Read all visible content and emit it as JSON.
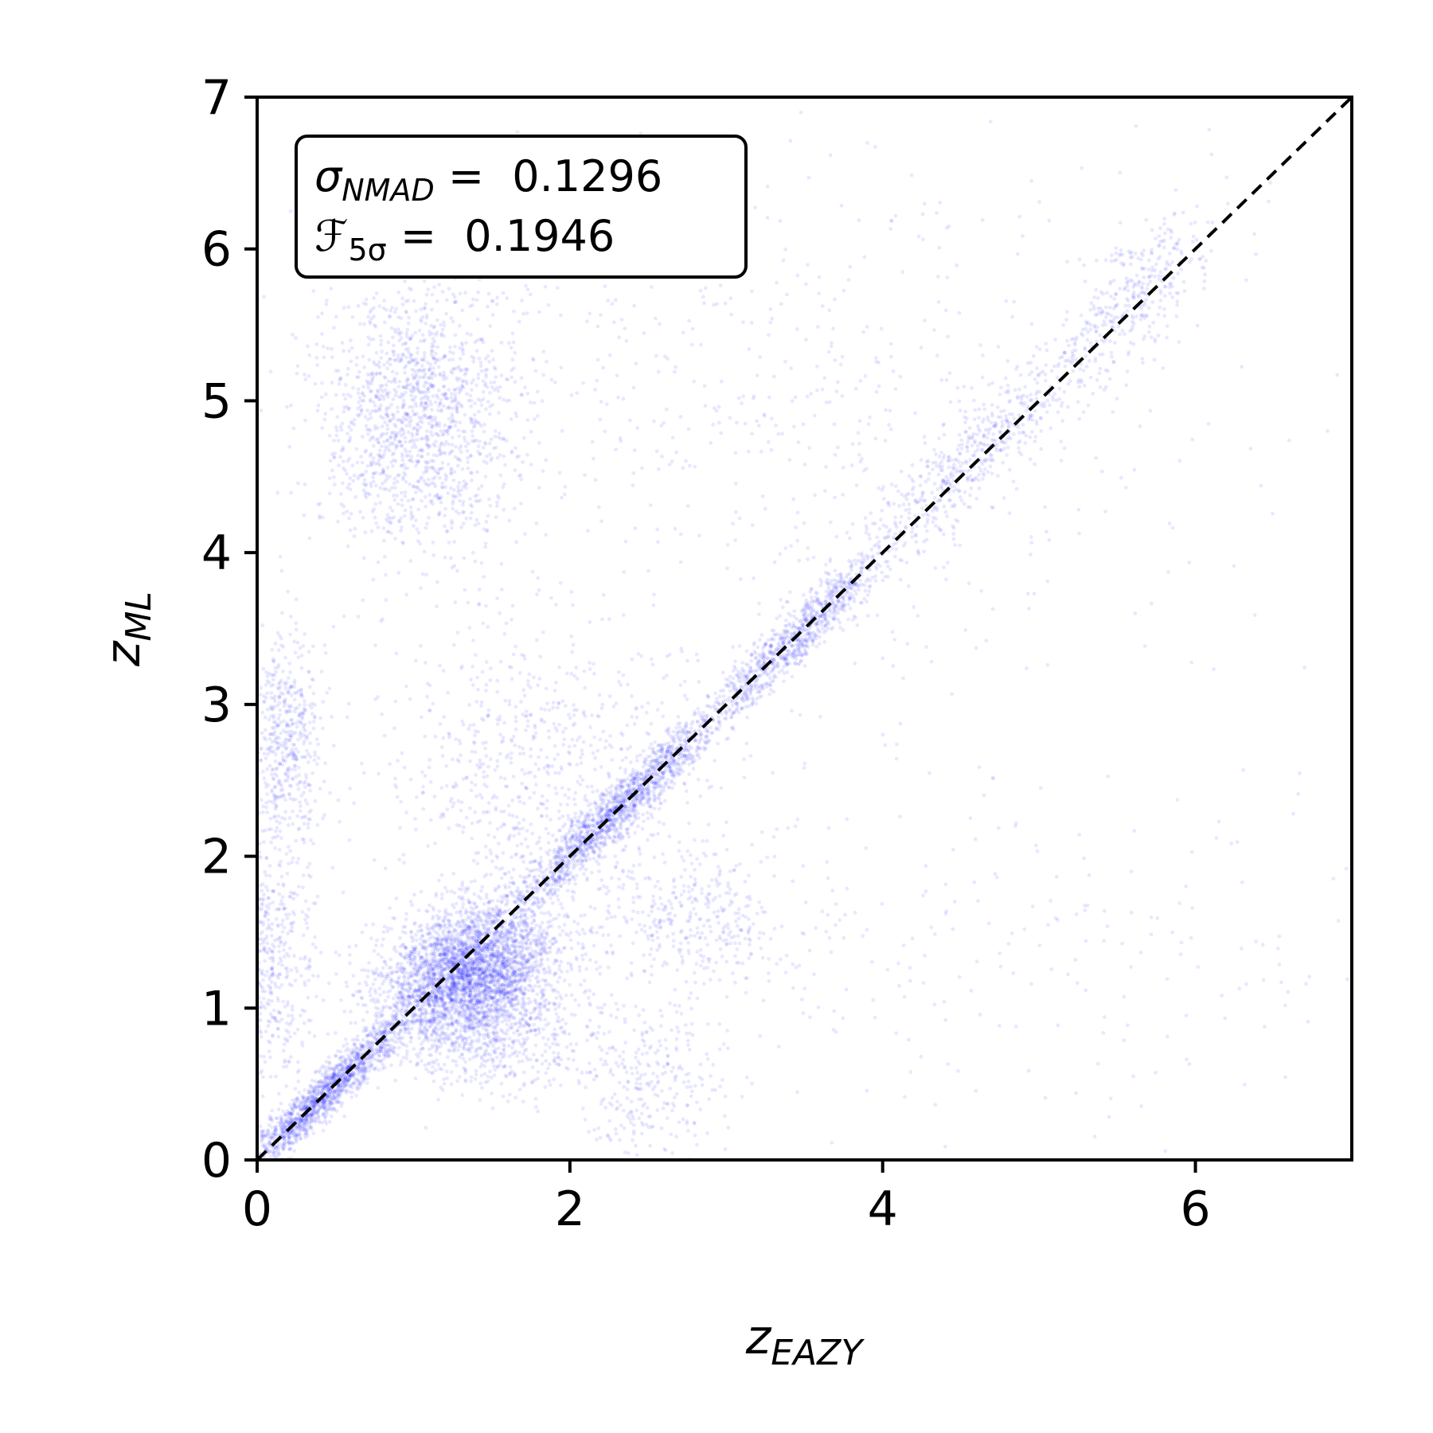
{
  "chart_data": {
    "type": "scatter",
    "title": "",
    "xlabel": {
      "main": "z",
      "sub": "EAZY"
    },
    "ylabel": {
      "main": "z",
      "sub": "ML"
    },
    "xlim": [
      0,
      7
    ],
    "ylim": [
      0,
      7
    ],
    "x_ticks": [
      0,
      2,
      4,
      6
    ],
    "y_ticks": [
      0,
      1,
      2,
      3,
      4,
      5,
      6,
      7
    ],
    "grid": false,
    "legend": "none",
    "point_color": "#0000ff",
    "reference_line": {
      "style": "dashed",
      "color": "#000000",
      "points": [
        [
          0,
          0
        ],
        [
          7,
          7
        ]
      ]
    },
    "annotation": {
      "placement": "top-left",
      "lines": [
        {
          "symbol": "σ",
          "sub": "NMAD",
          "eq": " = ",
          "value": "0.1296"
        },
        {
          "symbol": "ℱ",
          "sub": "5σ",
          "eq": " = ",
          "value": "0.1946"
        }
      ]
    },
    "density_clusters": [
      {
        "x": 1.35,
        "y": 1.25,
        "sx": 0.28,
        "sy": 0.22,
        "rho": 0.3,
        "n": 3200
      },
      {
        "x": 0.45,
        "y": 0.45,
        "sx": 0.28,
        "sy": 0.28,
        "rho": 0.96,
        "n": 1500
      },
      {
        "x": 2.3,
        "y": 2.3,
        "sx": 0.35,
        "sy": 0.35,
        "rho": 0.96,
        "n": 1500
      },
      {
        "x": 3.45,
        "y": 3.45,
        "sx": 0.3,
        "sy": 0.3,
        "rho": 0.95,
        "n": 900
      },
      {
        "x": 4.6,
        "y": 4.65,
        "sx": 0.35,
        "sy": 0.35,
        "rho": 0.9,
        "n": 500
      },
      {
        "x": 5.6,
        "y": 5.65,
        "sx": 0.25,
        "sy": 0.3,
        "rho": 0.7,
        "n": 350
      },
      {
        "x": 1.0,
        "y": 4.9,
        "sx": 0.32,
        "sy": 0.45,
        "rho": 0.0,
        "n": 1400
      },
      {
        "x": 0.18,
        "y": 2.75,
        "sx": 0.12,
        "sy": 0.35,
        "rho": 0.0,
        "n": 500
      },
      {
        "x": 0.1,
        "y": 1.3,
        "sx": 0.15,
        "sy": 0.45,
        "rho": 0.0,
        "n": 500
      },
      {
        "x": 2.8,
        "y": 1.55,
        "sx": 0.3,
        "sy": 0.25,
        "rho": 0.0,
        "n": 350
      },
      {
        "x": 2.5,
        "y": 0.5,
        "sx": 0.25,
        "sy": 0.3,
        "rho": 0.0,
        "n": 300
      },
      {
        "x": 1.5,
        "y": 0.85,
        "sx": 0.3,
        "sy": 0.2,
        "rho": 0.0,
        "n": 700
      },
      {
        "x": 1.8,
        "y": 2.5,
        "sx": 0.5,
        "sy": 0.5,
        "rho": 0.0,
        "n": 800
      },
      {
        "x": 3.2,
        "y": 4.8,
        "sx": 1.4,
        "sy": 0.9,
        "rho": 0.0,
        "n": 700
      },
      {
        "x": 4.5,
        "y": 1.4,
        "sx": 1.4,
        "sy": 0.6,
        "rho": 0.0,
        "n": 260
      }
    ]
  }
}
